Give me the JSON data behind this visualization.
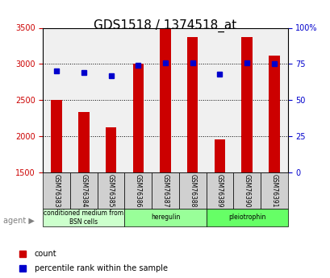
{
  "title": "GDS1518 / 1374518_at",
  "categories": [
    "GSM76383",
    "GSM76384",
    "GSM76385",
    "GSM76386",
    "GSM76387",
    "GSM76388",
    "GSM76389",
    "GSM76390",
    "GSM76391"
  ],
  "counts": [
    2500,
    2340,
    2120,
    3000,
    3490,
    3370,
    1960,
    3370,
    3110
  ],
  "percentile_ranks": [
    70,
    69,
    67,
    74,
    76,
    76,
    68,
    76,
    75
  ],
  "ylim_left": [
    1500,
    3500
  ],
  "ylim_right": [
    0,
    100
  ],
  "yticks_left": [
    1500,
    2000,
    2500,
    3000,
    3500
  ],
  "yticks_right": [
    0,
    25,
    50,
    75,
    100
  ],
  "yticklabels_right": [
    "0",
    "25",
    "50",
    "75",
    "100%"
  ],
  "bar_color": "#cc0000",
  "dot_color": "#0000cc",
  "grid_color": "#000000",
  "bg_color": "#ffffff",
  "plot_bg": "#ffffff",
  "agent_groups": [
    {
      "label": "conditioned medium from\nBSN cells",
      "start": 0,
      "end": 3,
      "color": "#ccffcc"
    },
    {
      "label": "heregulin",
      "start": 3,
      "end": 6,
      "color": "#99ff99"
    },
    {
      "label": "pleiotrophin",
      "start": 6,
      "end": 9,
      "color": "#66ff66"
    }
  ],
  "left_ylabel_color": "#cc0000",
  "right_ylabel_color": "#0000cc",
  "title_fontsize": 11,
  "tick_fontsize": 7,
  "label_fontsize": 7,
  "bar_width": 0.4
}
